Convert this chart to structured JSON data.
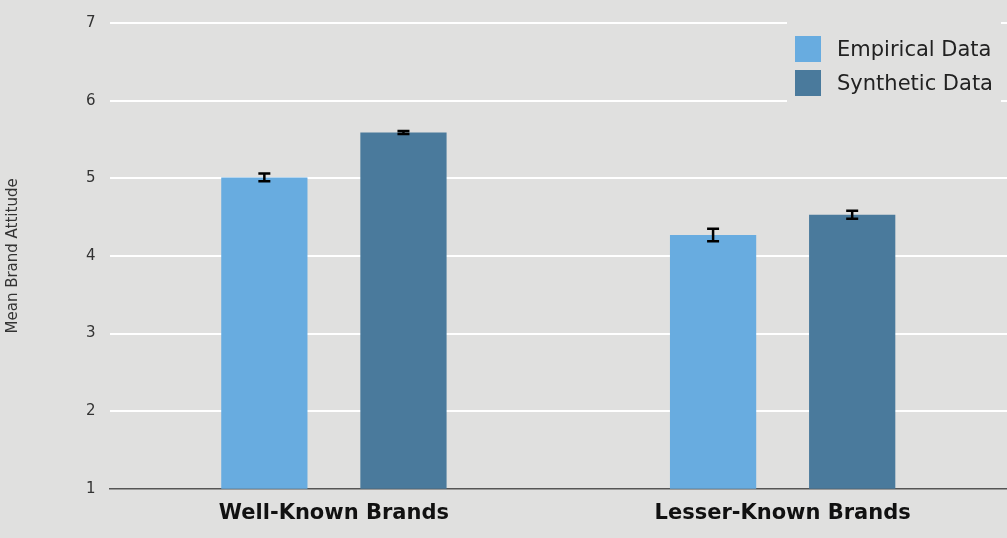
{
  "chart_data": {
    "type": "bar",
    "ylabel": "Mean Brand Attitude",
    "categories": [
      "Well-Known Brands",
      "Lesser-Known Brands"
    ],
    "series": [
      {
        "name": "Empirical Data",
        "color": "#68ace0",
        "values": [
          5.01,
          4.27
        ],
        "errors": [
          0.05,
          0.08
        ]
      },
      {
        "name": "Synthetic Data",
        "color": "#4a7a9c",
        "values": [
          5.59,
          4.53
        ],
        "errors": [
          0.02,
          0.05
        ]
      }
    ],
    "ylim": [
      1,
      7
    ],
    "yticks": [
      1,
      2,
      3,
      4,
      5,
      6,
      7
    ],
    "grid": "y",
    "legend": "top right"
  }
}
